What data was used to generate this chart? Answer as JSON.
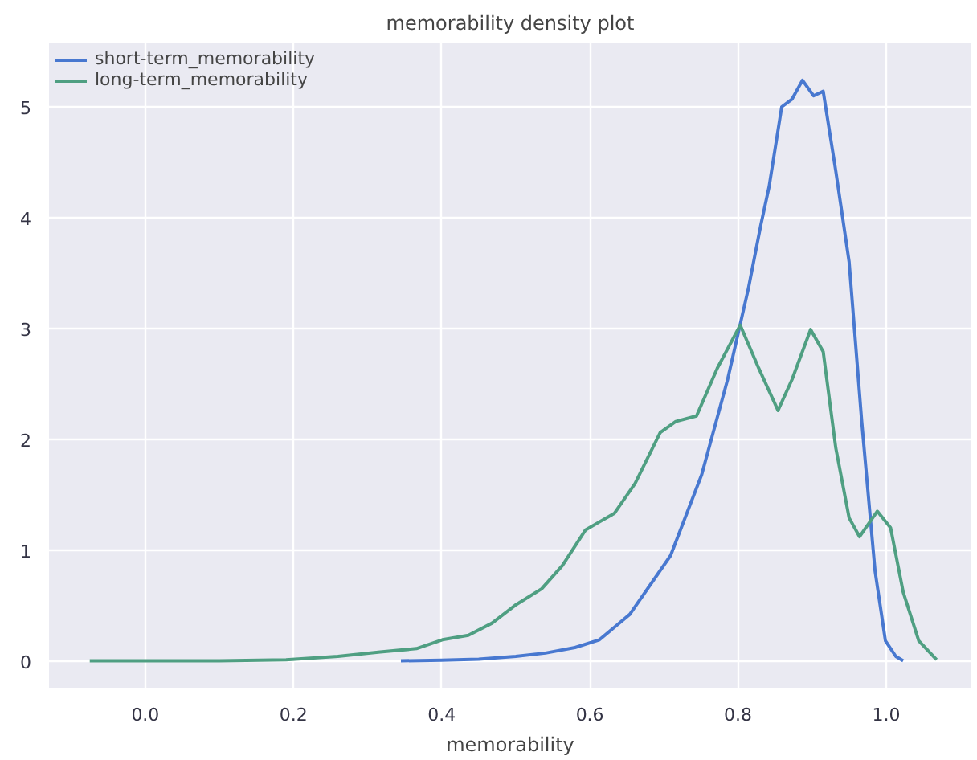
{
  "chart_data": {
    "type": "line",
    "title": "memorability density plot",
    "xlabel": "memorability",
    "xlim": [
      -0.13,
      1.115
    ],
    "ylim": [
      -0.25,
      5.58
    ],
    "xticks": [
      {
        "value": 0,
        "label": "0.0"
      },
      0.2,
      0.4,
      0.6,
      0.8,
      {
        "value": 1,
        "label": "1.0"
      }
    ],
    "yticks": [
      0,
      1,
      2,
      3,
      4,
      5
    ],
    "grid": true,
    "legend": "top left",
    "line_style": "solid",
    "marker": "none",
    "series": [
      {
        "name": "short-term_memorability",
        "color": "#4878d0",
        "x": [
          0.345,
          0.4,
          0.45,
          0.5,
          0.54,
          0.58,
          0.613,
          0.654,
          0.709,
          0.751,
          0.786,
          0.814,
          0.831,
          0.842,
          0.859,
          0.873,
          0.887,
          0.902,
          0.915,
          0.932,
          0.95,
          0.967,
          0.985,
          0.999,
          1.013,
          1.023
        ],
        "values": [
          0,
          0.005,
          0.015,
          0.04,
          0.07,
          0.12,
          0.19,
          0.42,
          0.95,
          1.68,
          2.54,
          3.36,
          3.94,
          4.28,
          5.0,
          5.07,
          5.24,
          5.1,
          5.14,
          4.42,
          3.6,
          2.16,
          0.81,
          0.18,
          0.04,
          0
        ]
      },
      {
        "name": "long-term_memorability",
        "color": "#4f9f82",
        "x": [
          -0.075,
          0.0,
          0.1,
          0.19,
          0.26,
          0.317,
          0.366,
          0.401,
          0.436,
          0.468,
          0.499,
          0.535,
          0.563,
          0.594,
          0.612,
          0.633,
          0.661,
          0.695,
          0.716,
          0.744,
          0.772,
          0.803,
          0.828,
          0.854,
          0.873,
          0.898,
          0.915,
          0.932,
          0.95,
          0.964,
          0.988,
          1.006,
          1.023,
          1.044,
          1.068
        ],
        "values": [
          0,
          0,
          0,
          0.01,
          0.04,
          0.08,
          0.11,
          0.19,
          0.23,
          0.34,
          0.5,
          0.65,
          0.86,
          1.18,
          1.25,
          1.33,
          1.6,
          2.06,
          2.16,
          2.21,
          2.64,
          3.03,
          2.64,
          2.26,
          2.54,
          2.99,
          2.79,
          1.92,
          1.29,
          1.12,
          1.35,
          1.2,
          0.62,
          0.18,
          0.01
        ]
      }
    ]
  }
}
